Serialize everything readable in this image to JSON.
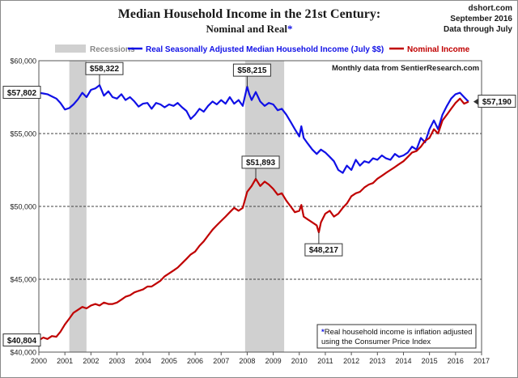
{
  "source": {
    "site": "dshort.com",
    "date": "September 2016",
    "coverage": "Data through July"
  },
  "colors": {
    "real": "#1010e6",
    "nominal": "#c00000",
    "recession": "#d0d0d0",
    "star": "#1010e6"
  },
  "chart_data": {
    "type": "line",
    "title": "Median Household Income in the 21st Century:",
    "subtitle": "Nominal and Real",
    "subtitle_mark": "*",
    "annotation": "Monthly data from SentierResearch.com",
    "footnote_mark": "*",
    "footnote_lines": [
      "Real household  income is inflation adjusted",
      "using  the Consumer Price Index"
    ],
    "legend": {
      "placement": "top",
      "recessions_label": "Recessions"
    },
    "xlim": [
      2000,
      2017
    ],
    "ylim": [
      40000,
      60000
    ],
    "grid": true,
    "x_ticks": [
      "2000",
      "2001",
      "2002",
      "2003",
      "2004",
      "2005",
      "2006",
      "2007",
      "2008",
      "2009",
      "2010",
      "2011",
      "2012",
      "2013",
      "2014",
      "2015",
      "2016",
      "2017"
    ],
    "y_ticks": [
      "$40,000",
      "$45,000",
      "$50,000",
      "$55,000",
      "$60,000"
    ],
    "y_tick_values": [
      40000,
      45000,
      50000,
      55000,
      60000
    ],
    "recessions": [
      [
        2001.17,
        2001.83
      ],
      [
        2007.92,
        2009.42
      ]
    ],
    "series": [
      {
        "name": "Real Seasonally Adjusted Median Household Income (July $$)",
        "key": "real",
        "points": [
          [
            2000.0,
            57802
          ],
          [
            2000.17,
            57750
          ],
          [
            2000.33,
            57700
          ],
          [
            2000.5,
            57550
          ],
          [
            2000.67,
            57400
          ],
          [
            2000.83,
            57100
          ],
          [
            2001.0,
            56650
          ],
          [
            2001.17,
            56750
          ],
          [
            2001.33,
            57000
          ],
          [
            2001.5,
            57350
          ],
          [
            2001.67,
            57800
          ],
          [
            2001.83,
            57500
          ],
          [
            2002.0,
            58000
          ],
          [
            2002.17,
            58100
          ],
          [
            2002.33,
            58322
          ],
          [
            2002.5,
            57600
          ],
          [
            2002.67,
            57900
          ],
          [
            2002.83,
            57500
          ],
          [
            2003.0,
            57400
          ],
          [
            2003.17,
            57700
          ],
          [
            2003.33,
            57300
          ],
          [
            2003.5,
            57500
          ],
          [
            2003.67,
            57200
          ],
          [
            2003.83,
            56850
          ],
          [
            2004.0,
            57050
          ],
          [
            2004.17,
            57100
          ],
          [
            2004.33,
            56700
          ],
          [
            2004.5,
            57100
          ],
          [
            2004.67,
            57000
          ],
          [
            2004.83,
            56800
          ],
          [
            2005.0,
            57000
          ],
          [
            2005.17,
            56900
          ],
          [
            2005.33,
            57100
          ],
          [
            2005.5,
            56800
          ],
          [
            2005.67,
            56550
          ],
          [
            2005.83,
            56000
          ],
          [
            2006.0,
            56300
          ],
          [
            2006.17,
            56700
          ],
          [
            2006.33,
            56500
          ],
          [
            2006.5,
            56900
          ],
          [
            2006.67,
            57200
          ],
          [
            2006.83,
            57000
          ],
          [
            2007.0,
            57300
          ],
          [
            2007.17,
            57050
          ],
          [
            2007.33,
            57500
          ],
          [
            2007.5,
            57050
          ],
          [
            2007.67,
            57300
          ],
          [
            2007.83,
            56900
          ],
          [
            2008.0,
            58215
          ],
          [
            2008.08,
            57700
          ],
          [
            2008.17,
            57300
          ],
          [
            2008.33,
            57850
          ],
          [
            2008.5,
            57200
          ],
          [
            2008.67,
            56900
          ],
          [
            2008.83,
            57100
          ],
          [
            2009.0,
            57000
          ],
          [
            2009.17,
            56600
          ],
          [
            2009.33,
            56700
          ],
          [
            2009.5,
            56300
          ],
          [
            2009.67,
            55800
          ],
          [
            2009.83,
            55300
          ],
          [
            2010.0,
            54800
          ],
          [
            2010.08,
            55500
          ],
          [
            2010.17,
            54700
          ],
          [
            2010.33,
            54300
          ],
          [
            2010.5,
            53900
          ],
          [
            2010.67,
            53600
          ],
          [
            2010.83,
            53900
          ],
          [
            2011.0,
            53700
          ],
          [
            2011.17,
            53400
          ],
          [
            2011.33,
            53100
          ],
          [
            2011.5,
            52500
          ],
          [
            2011.67,
            52300
          ],
          [
            2011.83,
            52800
          ],
          [
            2012.0,
            52500
          ],
          [
            2012.17,
            53200
          ],
          [
            2012.33,
            52800
          ],
          [
            2012.5,
            53100
          ],
          [
            2012.67,
            53000
          ],
          [
            2012.83,
            53300
          ],
          [
            2013.0,
            53200
          ],
          [
            2013.17,
            53500
          ],
          [
            2013.33,
            53300
          ],
          [
            2013.5,
            53200
          ],
          [
            2013.67,
            53600
          ],
          [
            2013.83,
            53400
          ],
          [
            2014.0,
            53500
          ],
          [
            2014.17,
            53700
          ],
          [
            2014.33,
            54100
          ],
          [
            2014.5,
            53900
          ],
          [
            2014.67,
            54700
          ],
          [
            2014.83,
            54400
          ],
          [
            2015.0,
            55300
          ],
          [
            2015.17,
            55900
          ],
          [
            2015.33,
            55300
          ],
          [
            2015.5,
            56300
          ],
          [
            2015.67,
            56900
          ],
          [
            2015.83,
            57400
          ],
          [
            2016.0,
            57700
          ],
          [
            2016.17,
            57800
          ],
          [
            2016.33,
            57500
          ],
          [
            2016.5,
            57190
          ]
        ]
      },
      {
        "name": "Nominal Income",
        "key": "nominal",
        "points": [
          [
            2000.0,
            40804
          ],
          [
            2000.17,
            41000
          ],
          [
            2000.33,
            40900
          ],
          [
            2000.5,
            41100
          ],
          [
            2000.67,
            41050
          ],
          [
            2000.83,
            41400
          ],
          [
            2001.0,
            41900
          ],
          [
            2001.17,
            42300
          ],
          [
            2001.33,
            42700
          ],
          [
            2001.5,
            42900
          ],
          [
            2001.67,
            43100
          ],
          [
            2001.83,
            43000
          ],
          [
            2002.0,
            43200
          ],
          [
            2002.17,
            43300
          ],
          [
            2002.33,
            43200
          ],
          [
            2002.5,
            43400
          ],
          [
            2002.67,
            43300
          ],
          [
            2002.83,
            43300
          ],
          [
            2003.0,
            43400
          ],
          [
            2003.17,
            43600
          ],
          [
            2003.33,
            43800
          ],
          [
            2003.5,
            43900
          ],
          [
            2003.67,
            44100
          ],
          [
            2003.83,
            44200
          ],
          [
            2004.0,
            44300
          ],
          [
            2004.17,
            44500
          ],
          [
            2004.33,
            44500
          ],
          [
            2004.5,
            44700
          ],
          [
            2004.67,
            44900
          ],
          [
            2004.83,
            45200
          ],
          [
            2005.0,
            45400
          ],
          [
            2005.17,
            45600
          ],
          [
            2005.33,
            45800
          ],
          [
            2005.5,
            46100
          ],
          [
            2005.67,
            46400
          ],
          [
            2005.83,
            46700
          ],
          [
            2006.0,
            46900
          ],
          [
            2006.17,
            47300
          ],
          [
            2006.33,
            47600
          ],
          [
            2006.5,
            48000
          ],
          [
            2006.67,
            48400
          ],
          [
            2006.83,
            48700
          ],
          [
            2007.0,
            49000
          ],
          [
            2007.17,
            49300
          ],
          [
            2007.33,
            49600
          ],
          [
            2007.5,
            49900
          ],
          [
            2007.67,
            49700
          ],
          [
            2007.83,
            49900
          ],
          [
            2008.0,
            51000
          ],
          [
            2008.17,
            51400
          ],
          [
            2008.33,
            51893
          ],
          [
            2008.5,
            51400
          ],
          [
            2008.67,
            51700
          ],
          [
            2008.83,
            51500
          ],
          [
            2009.0,
            51200
          ],
          [
            2009.17,
            50800
          ],
          [
            2009.33,
            50900
          ],
          [
            2009.5,
            50400
          ],
          [
            2009.67,
            50000
          ],
          [
            2009.83,
            49600
          ],
          [
            2010.0,
            49700
          ],
          [
            2010.08,
            50100
          ],
          [
            2010.17,
            49300
          ],
          [
            2010.33,
            49100
          ],
          [
            2010.5,
            48900
          ],
          [
            2010.67,
            48700
          ],
          [
            2010.75,
            48217
          ],
          [
            2010.83,
            48900
          ],
          [
            2011.0,
            49500
          ],
          [
            2011.17,
            49700
          ],
          [
            2011.33,
            49300
          ],
          [
            2011.5,
            49500
          ],
          [
            2011.67,
            49900
          ],
          [
            2011.83,
            50200
          ],
          [
            2012.0,
            50700
          ],
          [
            2012.17,
            50900
          ],
          [
            2012.33,
            51000
          ],
          [
            2012.5,
            51300
          ],
          [
            2012.67,
            51500
          ],
          [
            2012.83,
            51600
          ],
          [
            2013.0,
            51900
          ],
          [
            2013.17,
            52100
          ],
          [
            2013.33,
            52300
          ],
          [
            2013.5,
            52500
          ],
          [
            2013.67,
            52700
          ],
          [
            2013.83,
            52900
          ],
          [
            2014.0,
            53100
          ],
          [
            2014.17,
            53400
          ],
          [
            2014.33,
            53700
          ],
          [
            2014.5,
            53800
          ],
          [
            2014.67,
            54100
          ],
          [
            2014.83,
            54500
          ],
          [
            2015.0,
            54700
          ],
          [
            2015.17,
            55300
          ],
          [
            2015.33,
            55000
          ],
          [
            2015.5,
            55900
          ],
          [
            2015.67,
            56300
          ],
          [
            2015.83,
            56700
          ],
          [
            2016.0,
            57100
          ],
          [
            2016.17,
            57400
          ],
          [
            2016.33,
            57050
          ],
          [
            2016.5,
            57190
          ]
        ]
      }
    ],
    "callouts": [
      {
        "text": "$58,322",
        "x": 2002.33,
        "y": 58322,
        "series": "real"
      },
      {
        "text": "$58,215",
        "x": 2008.0,
        "y": 58215,
        "series": "real"
      },
      {
        "text": "$51,893",
        "x": 2008.33,
        "y": 51893,
        "series": "nominal"
      },
      {
        "text": "$48,217",
        "x": 2010.75,
        "y": 48217,
        "series": "nominal"
      }
    ],
    "edge_labels": [
      {
        "text": "$57,802",
        "y": 57802,
        "side": "left"
      },
      {
        "text": "$40,804",
        "y": 40804,
        "side": "left"
      },
      {
        "text": "$57,190",
        "y": 57190,
        "side": "right"
      }
    ]
  }
}
